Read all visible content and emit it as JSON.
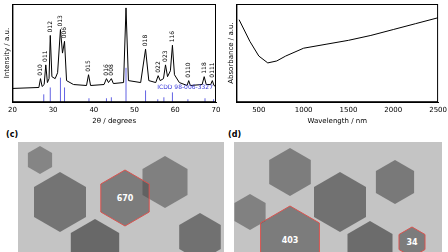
{
  "chart_data": [
    {
      "type": "line",
      "x_label": "2θ / degrees",
      "y_label": "Intensity / a.u.",
      "xlim": [
        20,
        70
      ],
      "xticks": [
        20,
        30,
        40,
        50,
        60,
        70
      ],
      "ylim": [
        0,
        100
      ],
      "tick_labels": "x",
      "grid": false,
      "series": [
        {
          "name": "ICDD 98-006-3327",
          "type": "stick",
          "color": "#3b3bdc",
          "x": [
            27.7,
            29.3,
            31.8,
            32.8,
            38.8,
            43.1,
            44.3,
            47.9,
            52.7,
            55.7,
            57.2,
            59.3,
            63.1,
            67.3,
            69.4
          ],
          "values": [
            8,
            15,
            25,
            15,
            4,
            4,
            5,
            35,
            12,
            3,
            5,
            10,
            3,
            4,
            3
          ]
        },
        {
          "type": "line",
          "color": "#000000",
          "x": [
            20,
            26.5,
            26.9,
            27.3,
            27.8,
            28.2,
            28.6,
            29.0,
            29.3,
            29.7,
            30.5,
            31.1,
            31.8,
            32.3,
            32.8,
            33.3,
            35,
            38.2,
            38.7,
            39.2,
            42.5,
            43.1,
            43.6,
            44.3,
            44.8,
            47.3,
            47.9,
            48.5,
            51.5,
            52.7,
            53.5,
            55.2,
            55.8,
            56.3,
            57.1,
            57.6,
            58.1,
            58.8,
            59.3,
            59.8,
            61,
            62.9,
            63.3,
            63.7,
            66.6,
            67.1,
            67.6,
            68.7,
            69.1,
            69.5,
            70
          ],
          "values": [
            14,
            15,
            24,
            16,
            18,
            38,
            20,
            24,
            68,
            26,
            24,
            30,
            74,
            50,
            62,
            22,
            18,
            17,
            28,
            17,
            18,
            24,
            20,
            24,
            19,
            20,
            96,
            22,
            20,
            54,
            22,
            20,
            27,
            22,
            24,
            38,
            26,
            32,
            58,
            28,
            20,
            17,
            22,
            17,
            18,
            26,
            18,
            18,
            22,
            17,
            16
          ]
        }
      ],
      "annotations": [
        {
          "text": "010",
          "x": 26.9,
          "y": 27
        },
        {
          "text": "011",
          "x": 28.2,
          "y": 41
        },
        {
          "text": "012",
          "x": 29.3,
          "y": 71
        },
        {
          "text": "013",
          "x": 31.8,
          "y": 77
        },
        {
          "text": "006",
          "x": 32.8,
          "y": 65
        },
        {
          "text": "015",
          "x": 38.7,
          "y": 31
        },
        {
          "text": "016",
          "x": 43.1,
          "y": 27
        },
        {
          "text": "008",
          "x": 44.3,
          "y": 27
        },
        {
          "text": "018",
          "x": 52.7,
          "y": 57
        },
        {
          "text": "022",
          "x": 55.8,
          "y": 30
        },
        {
          "text": "023",
          "x": 57.6,
          "y": 41
        },
        {
          "text": "116",
          "x": 59.3,
          "y": 61
        },
        {
          "text": "0110",
          "x": 63.3,
          "y": 25
        },
        {
          "text": "118",
          "x": 67.1,
          "y": 29
        },
        {
          "text": "0111",
          "x": 69.1,
          "y": 25
        }
      ]
    },
    {
      "type": "line",
      "x_label": "Wavelength / nm",
      "y_label": "Absorbance / a.u.",
      "xlim": [
        250,
        2500
      ],
      "xticks": [
        500,
        1000,
        1500,
        2000,
        2500
      ],
      "ylim": [
        0,
        100
      ],
      "tick_labels": "x",
      "grid": false,
      "series": [
        {
          "type": "line",
          "color": "#000000",
          "x": [
            280,
            400,
            500,
            600,
            700,
            800,
            1000,
            1250,
            1500,
            1750,
            2000,
            2250,
            2500
          ],
          "values": [
            84,
            62,
            47,
            40,
            42,
            47,
            55,
            59,
            63,
            68,
            74,
            80,
            86
          ]
        }
      ]
    }
  ],
  "panels": [
    {
      "label": "(c)",
      "measurements": [
        670
      ]
    },
    {
      "label": "(d)",
      "measurements": [
        403,
        34
      ]
    }
  ]
}
